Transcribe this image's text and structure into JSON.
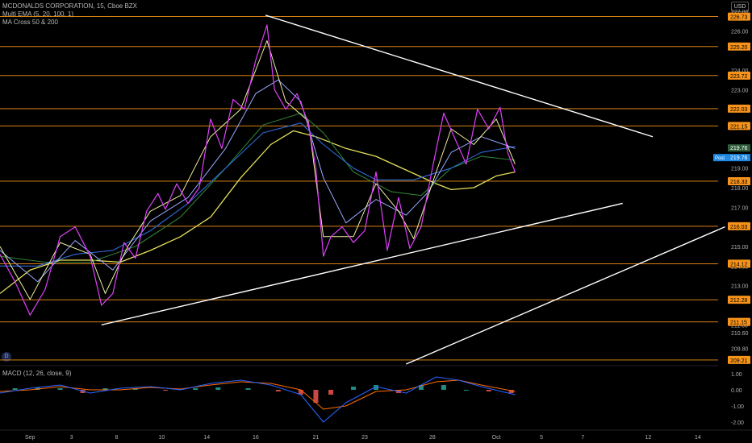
{
  "legend": {
    "symbol": "MCDONALDS CORPORATION, 15, Cboe BZX",
    "indicator1": "Multi EMA (5, 20, 100, 1)",
    "indicator2": "MA Cross 50 & 200",
    "currency": "USD",
    "event_badge": "D",
    "macd": "MACD (12, 26, close, 9)"
  },
  "chart_data": {
    "type": "line",
    "x_tick_labels": [
      "Sep",
      "3",
      "8",
      "10",
      "14",
      "16",
      "21",
      "23",
      "28",
      "Oct",
      "5",
      "7",
      "12",
      "14"
    ],
    "y_axis": {
      "range": [
        209.0,
        227.0
      ],
      "tick_labels": [
        "227.00",
        "226.00",
        "224.00",
        "223.00",
        "220.00",
        "219.00",
        "218.00",
        "217.00",
        "215.00",
        "214.00",
        "213.00",
        "211.00",
        "210.60",
        "209.80"
      ]
    },
    "horizontal_levels": [
      {
        "value": 226.73,
        "label": "226.73"
      },
      {
        "value": 225.2,
        "label": "225.20"
      },
      {
        "value": 223.72,
        "label": "223.72"
      },
      {
        "value": 222.03,
        "label": "222.03"
      },
      {
        "value": 221.15,
        "label": "221.15"
      },
      {
        "value": 218.33,
        "label": "218.33"
      },
      {
        "value": 216.03,
        "label": "216.03"
      },
      {
        "value": 214.12,
        "label": "214.12"
      },
      {
        "value": 212.28,
        "label": "212.28"
      },
      {
        "value": 211.15,
        "label": "211.15"
      },
      {
        "value": 209.21,
        "label": "209.21"
      }
    ],
    "last_price": {
      "label": "Post",
      "value": "219.76"
    },
    "prev_close": {
      "value": "219.76"
    },
    "trend_lines": [
      {
        "name": "upper-resistance",
        "points": [
          [
            0.353,
            226.8
          ],
          [
            0.868,
            220.6
          ]
        ]
      },
      {
        "name": "lower-support",
        "points": [
          [
            0.135,
            211.0
          ],
          [
            0.828,
            217.2
          ]
        ]
      },
      {
        "name": "outer-support",
        "points": [
          [
            0.54,
            209.0
          ],
          [
            0.964,
            216.0
          ]
        ]
      }
    ],
    "price": [
      [
        0.0,
        214.6
      ],
      [
        0.02,
        213.2
      ],
      [
        0.04,
        211.5
      ],
      [
        0.06,
        212.8
      ],
      [
        0.08,
        215.5
      ],
      [
        0.1,
        216.0
      ],
      [
        0.12,
        214.5
      ],
      [
        0.135,
        212.0
      ],
      [
        0.15,
        212.6
      ],
      [
        0.165,
        215.2
      ],
      [
        0.18,
        214.4
      ],
      [
        0.195,
        216.8
      ],
      [
        0.21,
        217.7
      ],
      [
        0.22,
        216.9
      ],
      [
        0.235,
        218.2
      ],
      [
        0.25,
        217.2
      ],
      [
        0.265,
        218.0
      ],
      [
        0.28,
        221.5
      ],
      [
        0.295,
        220.0
      ],
      [
        0.31,
        222.5
      ],
      [
        0.325,
        222.0
      ],
      [
        0.34,
        224.5
      ],
      [
        0.355,
        226.3
      ],
      [
        0.365,
        223.0
      ],
      [
        0.38,
        222.0
      ],
      [
        0.395,
        222.8
      ],
      [
        0.41,
        221.3
      ],
      [
        0.42,
        219.0
      ],
      [
        0.43,
        214.5
      ],
      [
        0.44,
        215.5
      ],
      [
        0.455,
        216.0
      ],
      [
        0.47,
        215.2
      ],
      [
        0.485,
        215.8
      ],
      [
        0.5,
        218.8
      ],
      [
        0.515,
        214.8
      ],
      [
        0.53,
        217.5
      ],
      [
        0.545,
        214.9
      ],
      [
        0.56,
        216.0
      ],
      [
        0.575,
        219.0
      ],
      [
        0.59,
        221.8
      ],
      [
        0.605,
        220.5
      ],
      [
        0.62,
        219.2
      ],
      [
        0.635,
        222.0
      ],
      [
        0.65,
        221.0
      ],
      [
        0.665,
        222.1
      ],
      [
        0.675,
        219.8
      ],
      [
        0.685,
        218.8
      ]
    ],
    "ema5": [
      [
        0.0,
        215.0
      ],
      [
        0.04,
        212.3
      ],
      [
        0.08,
        215.2
      ],
      [
        0.12,
        214.6
      ],
      [
        0.14,
        212.6
      ],
      [
        0.17,
        215.0
      ],
      [
        0.2,
        216.8
      ],
      [
        0.24,
        217.6
      ],
      [
        0.28,
        220.6
      ],
      [
        0.32,
        222.0
      ],
      [
        0.355,
        225.5
      ],
      [
        0.38,
        222.4
      ],
      [
        0.41,
        221.4
      ],
      [
        0.43,
        215.5
      ],
      [
        0.47,
        215.5
      ],
      [
        0.5,
        218.2
      ],
      [
        0.53,
        216.8
      ],
      [
        0.55,
        215.4
      ],
      [
        0.58,
        218.8
      ],
      [
        0.6,
        221.0
      ],
      [
        0.63,
        220.2
      ],
      [
        0.66,
        221.5
      ],
      [
        0.685,
        219.2
      ]
    ],
    "ema20": [
      [
        0.0,
        214.8
      ],
      [
        0.05,
        213.2
      ],
      [
        0.1,
        215.3
      ],
      [
        0.15,
        213.8
      ],
      [
        0.2,
        216.3
      ],
      [
        0.25,
        217.5
      ],
      [
        0.3,
        220.0
      ],
      [
        0.34,
        222.8
      ],
      [
        0.37,
        223.5
      ],
      [
        0.4,
        222.4
      ],
      [
        0.43,
        218.5
      ],
      [
        0.46,
        216.2
      ],
      [
        0.5,
        217.4
      ],
      [
        0.54,
        216.6
      ],
      [
        0.57,
        217.8
      ],
      [
        0.6,
        219.8
      ],
      [
        0.64,
        220.6
      ],
      [
        0.685,
        220.0
      ]
    ],
    "ema100": [
      [
        0.0,
        214.0
      ],
      [
        0.05,
        214.0
      ],
      [
        0.1,
        214.6
      ],
      [
        0.15,
        214.8
      ],
      [
        0.2,
        215.8
      ],
      [
        0.25,
        217.2
      ],
      [
        0.3,
        219.0
      ],
      [
        0.35,
        220.8
      ],
      [
        0.4,
        221.3
      ],
      [
        0.43,
        220.2
      ],
      [
        0.47,
        219.0
      ],
      [
        0.5,
        218.4
      ],
      [
        0.55,
        218.4
      ],
      [
        0.6,
        219.0
      ],
      [
        0.64,
        219.8
      ],
      [
        0.685,
        220.1
      ]
    ],
    "ma50": [
      [
        0.0,
        214.5
      ],
      [
        0.06,
        214.2
      ],
      [
        0.12,
        214.2
      ],
      [
        0.18,
        215.0
      ],
      [
        0.24,
        216.5
      ],
      [
        0.3,
        219.0
      ],
      [
        0.35,
        221.2
      ],
      [
        0.4,
        221.8
      ],
      [
        0.43,
        220.8
      ],
      [
        0.47,
        218.8
      ],
      [
        0.52,
        217.8
      ],
      [
        0.56,
        217.6
      ],
      [
        0.6,
        219.0
      ],
      [
        0.64,
        219.6
      ],
      [
        0.685,
        219.4
      ]
    ],
    "ma200": [
      [
        0.0,
        212.6
      ],
      [
        0.04,
        213.8
      ],
      [
        0.08,
        214.3
      ],
      [
        0.12,
        214.3
      ],
      [
        0.16,
        214.2
      ],
      [
        0.2,
        214.8
      ],
      [
        0.24,
        215.5
      ],
      [
        0.28,
        216.5
      ],
      [
        0.32,
        218.5
      ],
      [
        0.36,
        220.2
      ],
      [
        0.39,
        220.9
      ],
      [
        0.42,
        220.6
      ],
      [
        0.46,
        220.0
      ],
      [
        0.5,
        219.6
      ],
      [
        0.54,
        218.9
      ],
      [
        0.58,
        218.2
      ],
      [
        0.6,
        217.9
      ],
      [
        0.63,
        218.0
      ],
      [
        0.66,
        218.6
      ],
      [
        0.685,
        218.8
      ]
    ],
    "macd": {
      "y_tick_labels": [
        "1.00",
        "0.00",
        "-1.00",
        "-2.00"
      ],
      "y_range": [
        -2.4,
        1.4
      ],
      "macd_line": [
        [
          0.0,
          -0.2
        ],
        [
          0.04,
          0.1
        ],
        [
          0.08,
          0.3
        ],
        [
          0.12,
          -0.2
        ],
        [
          0.16,
          0.1
        ],
        [
          0.2,
          0.2
        ],
        [
          0.24,
          0.0
        ],
        [
          0.28,
          0.4
        ],
        [
          0.32,
          0.6
        ],
        [
          0.36,
          0.3
        ],
        [
          0.4,
          -0.3
        ],
        [
          0.43,
          -2.0
        ],
        [
          0.46,
          -0.8
        ],
        [
          0.5,
          0.2
        ],
        [
          0.54,
          -0.2
        ],
        [
          0.58,
          0.8
        ],
        [
          0.61,
          0.6
        ],
        [
          0.64,
          0.2
        ],
        [
          0.685,
          -0.3
        ]
      ],
      "signal_line": [
        [
          0.0,
          -0.1
        ],
        [
          0.04,
          0.0
        ],
        [
          0.08,
          0.2
        ],
        [
          0.12,
          0.0
        ],
        [
          0.16,
          0.0
        ],
        [
          0.2,
          0.15
        ],
        [
          0.24,
          0.05
        ],
        [
          0.28,
          0.3
        ],
        [
          0.32,
          0.5
        ],
        [
          0.36,
          0.4
        ],
        [
          0.4,
          0.0
        ],
        [
          0.43,
          -1.2
        ],
        [
          0.46,
          -1.0
        ],
        [
          0.5,
          -0.1
        ],
        [
          0.54,
          0.0
        ],
        [
          0.58,
          0.5
        ],
        [
          0.61,
          0.6
        ],
        [
          0.64,
          0.3
        ],
        [
          0.685,
          -0.1
        ]
      ],
      "histogram": [
        [
          0.02,
          0.1
        ],
        [
          0.05,
          0.15
        ],
        [
          0.08,
          0.1
        ],
        [
          0.11,
          -0.2
        ],
        [
          0.14,
          0.1
        ],
        [
          0.18,
          0.1
        ],
        [
          0.22,
          -0.05
        ],
        [
          0.26,
          0.1
        ],
        [
          0.29,
          0.15
        ],
        [
          0.33,
          0.1
        ],
        [
          0.37,
          -0.1
        ],
        [
          0.4,
          -0.3
        ],
        [
          0.42,
          -0.8
        ],
        [
          0.44,
          -0.3
        ],
        [
          0.47,
          0.2
        ],
        [
          0.5,
          0.3
        ],
        [
          0.53,
          -0.2
        ],
        [
          0.56,
          0.3
        ],
        [
          0.59,
          0.3
        ],
        [
          0.62,
          0.0
        ],
        [
          0.65,
          -0.1
        ],
        [
          0.68,
          -0.2
        ]
      ]
    }
  },
  "colors": {
    "level": "#f7931a",
    "trend": "#ffffff",
    "price": "#e040fb",
    "wick": "#888888",
    "ema5": "#f0f0a0",
    "ema20": "#9aa8ff",
    "ema100": "#2d6bd8",
    "ma50": "#2e7d32",
    "ma200": "#e8e05a",
    "price_tag": "#1e88e5",
    "axis_text": "#b0b0b0",
    "macd": "#2962ff",
    "signal": "#ff6d00",
    "hist_pos": "#26a69a",
    "hist_neg": "#ef5350"
  }
}
